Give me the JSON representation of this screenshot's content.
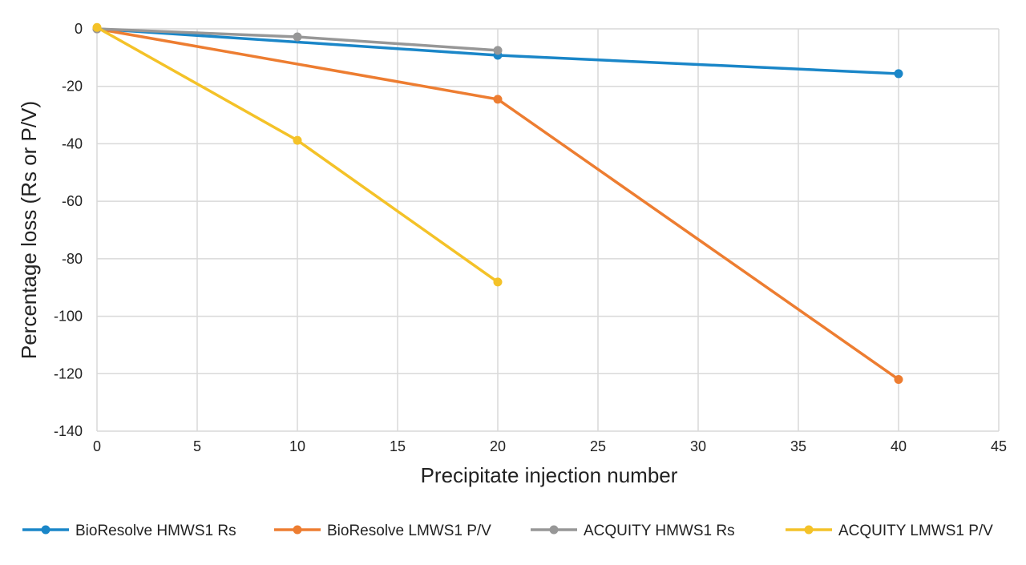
{
  "chart_data": {
    "type": "line",
    "title": "",
    "xlabel": "Precipitate injection number",
    "ylabel": "Percentage loss (Rs or P/V)",
    "xlim": [
      0,
      45
    ],
    "ylim": [
      -140,
      0
    ],
    "xticks": [
      0,
      5,
      10,
      15,
      20,
      25,
      30,
      35,
      40,
      45
    ],
    "yticks": [
      0,
      -20,
      -40,
      -60,
      -80,
      -100,
      -120,
      -140
    ],
    "grid": true,
    "legend_position": "bottom",
    "series": [
      {
        "name": "BioResolve HMWS1 Rs",
        "color": "#1a86c8",
        "x": [
          0,
          20,
          40
        ],
        "y": [
          0,
          -9.2,
          -15.6
        ]
      },
      {
        "name": "BioResolve LMWS1 P/V",
        "color": "#ed7d31",
        "x": [
          0,
          20,
          40
        ],
        "y": [
          0,
          -24.5,
          -122
        ]
      },
      {
        "name": "ACQUITY HMWS1 Rs",
        "color": "#979797",
        "x": [
          0,
          10,
          20
        ],
        "y": [
          0,
          -2.8,
          -7.5
        ]
      },
      {
        "name": "ACQUITY LMWS1 P/V",
        "color": "#f4c228",
        "x": [
          0,
          10,
          20
        ],
        "y": [
          0.5,
          -38.8,
          -88.1
        ]
      }
    ]
  }
}
